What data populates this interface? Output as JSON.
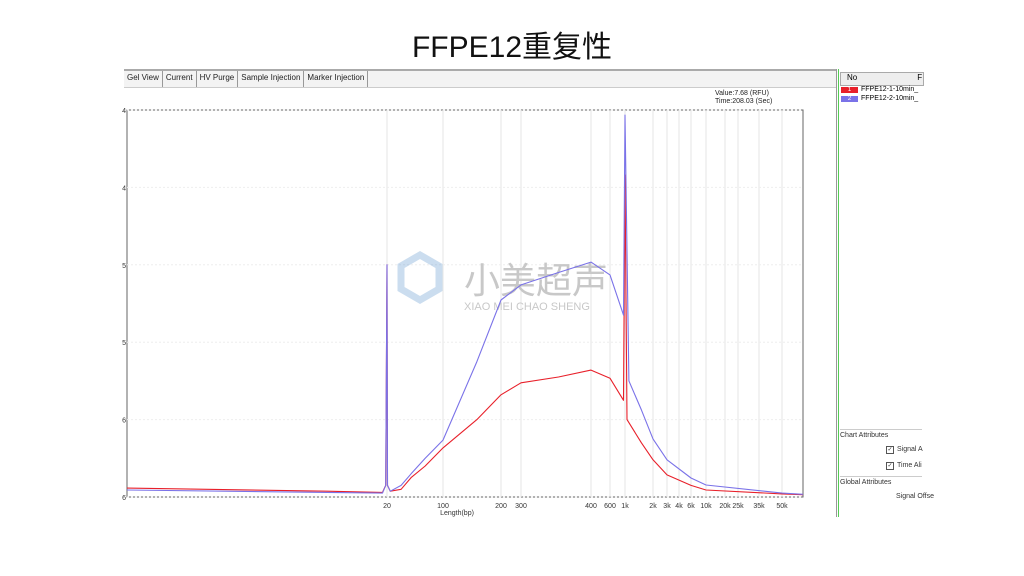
{
  "title": "FFPE12重复性",
  "tabs": [
    "Gel View",
    "Current",
    "HV Purge",
    "Sample Injection",
    "Marker Injection"
  ],
  "readout": {
    "value": "Value:7.68 (RFU)",
    "time": "Time:208.03 (Sec)"
  },
  "side": {
    "no_header": "No",
    "col2_header": "F",
    "samples": [
      {
        "no": "1",
        "name": "FFPE12-1-10min_",
        "color": "#e8202a"
      },
      {
        "no": "2",
        "name": "FFPE12-2-10min_",
        "color": "#7a72e8"
      }
    ],
    "chart_attributes": "Chart Attributes",
    "signal_align": "Signal A",
    "time_align": "Time Ali",
    "global_attributes": "Global Attributes",
    "signal_offset": "Signal Offse"
  },
  "watermark": {
    "cn": "小美超声",
    "en": "XIAO MEI CHAO SHENG"
  },
  "chart_data": {
    "type": "line",
    "xlabel": "Length(bp)",
    "xscale": "log (aligned ladder)",
    "grid": true,
    "x_ticks": [
      {
        "v": 20,
        "l": "20"
      },
      {
        "v": 100,
        "l": "100"
      },
      {
        "v": 200,
        "l": "200"
      },
      {
        "v": 300,
        "l": "300"
      },
      {
        "v": 400,
        "l": "400"
      },
      {
        "v": 600,
        "l": "600"
      },
      {
        "v": 1000,
        "l": "1k"
      },
      {
        "v": 2000,
        "l": "2k"
      },
      {
        "v": 3000,
        "l": "3k"
      },
      {
        "v": 4000,
        "l": "4k"
      },
      {
        "v": 6000,
        "l": "6k"
      },
      {
        "v": 10000,
        "l": "10k"
      },
      {
        "v": 20000,
        "l": "20k"
      },
      {
        "v": 25000,
        "l": "25k"
      },
      {
        "v": 35000,
        "l": "35k"
      },
      {
        "v": 50000,
        "l": "50k"
      }
    ],
    "y_tick_labels": [
      "4",
      "4",
      "5",
      "5",
      "6",
      "6"
    ],
    "ylim": [
      0,
      100
    ],
    "series": [
      {
        "color": "#e8202a",
        "points": [
          [
            1,
            2.3
          ],
          [
            10,
            1.5
          ],
          [
            19,
            1.2
          ],
          [
            19.7,
            3
          ],
          [
            20,
            60
          ],
          [
            20.3,
            3
          ],
          [
            22,
            1.5
          ],
          [
            30,
            2
          ],
          [
            40,
            5
          ],
          [
            60,
            8
          ],
          [
            100,
            12.7
          ],
          [
            150,
            20
          ],
          [
            200,
            26.4
          ],
          [
            300,
            29.5
          ],
          [
            350,
            31
          ],
          [
            400,
            32.8
          ],
          [
            600,
            30.7
          ],
          [
            950,
            25
          ],
          [
            1000,
            83.2
          ],
          [
            1050,
            20
          ],
          [
            1500,
            14
          ],
          [
            2000,
            9.6
          ],
          [
            3000,
            5.7
          ],
          [
            6000,
            3
          ],
          [
            10000,
            1.8
          ],
          [
            50000,
            0.8
          ],
          [
            70000,
            0.6
          ]
        ]
      },
      {
        "color": "#7a72e8",
        "points": [
          [
            1,
            1.8
          ],
          [
            10,
            1.2
          ],
          [
            19,
            1
          ],
          [
            19.7,
            3
          ],
          [
            20,
            60
          ],
          [
            20.3,
            3
          ],
          [
            22,
            1.5
          ],
          [
            30,
            3
          ],
          [
            40,
            6
          ],
          [
            60,
            10
          ],
          [
            100,
            14.7
          ],
          [
            150,
            35
          ],
          [
            200,
            50.9
          ],
          [
            300,
            54.8
          ],
          [
            350,
            58
          ],
          [
            400,
            60.7
          ],
          [
            600,
            57.4
          ],
          [
            950,
            47
          ],
          [
            1000,
            98.7
          ],
          [
            1100,
            30
          ],
          [
            1500,
            22.5
          ],
          [
            2000,
            15
          ],
          [
            3000,
            9.6
          ],
          [
            6000,
            4.9
          ],
          [
            10000,
            3.1
          ],
          [
            50000,
            1
          ],
          [
            70000,
            0.7
          ]
        ]
      }
    ]
  }
}
